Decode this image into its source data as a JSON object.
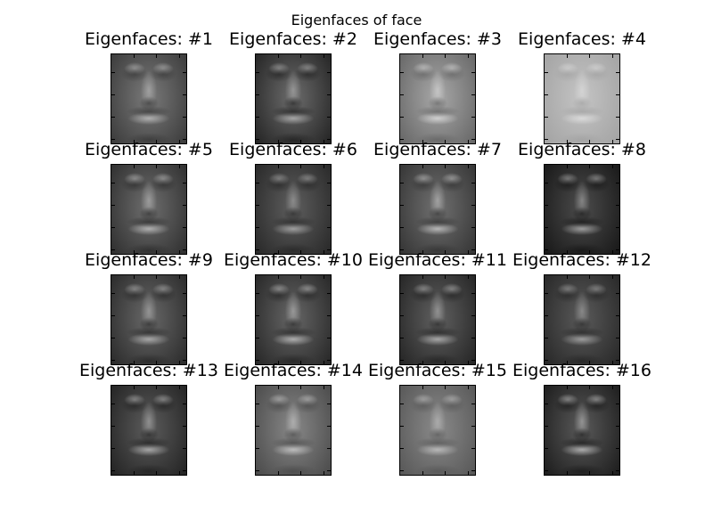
{
  "figure": {
    "suptitle": "Eigenfaces of face",
    "panels": [
      {
        "title": "Eigenfaces: #1",
        "base": "#7a7a7a",
        "highlight": "#d6d6d6",
        "shadow": "#2a2a2a"
      },
      {
        "title": "Eigenfaces: #2",
        "base": "#6c6c6c",
        "highlight": "#cfcfcf",
        "shadow": "#111111"
      },
      {
        "title": "Eigenfaces: #3",
        "base": "#a8a8a8",
        "highlight": "#eeeeee",
        "shadow": "#555555"
      },
      {
        "title": "Eigenfaces: #4",
        "base": "#c4c4c4",
        "highlight": "#eaeaea",
        "shadow": "#9a9a9a"
      },
      {
        "title": "Eigenfaces: #5",
        "base": "#6e6e6e",
        "highlight": "#dcdcdc",
        "shadow": "#1e1e1e"
      },
      {
        "title": "Eigenfaces: #6",
        "base": "#5e5e5e",
        "highlight": "#c8c8c8",
        "shadow": "#1a1a1a"
      },
      {
        "title": "Eigenfaces: #7",
        "base": "#707070",
        "highlight": "#e4e4e4",
        "shadow": "#252525"
      },
      {
        "title": "Eigenfaces: #8",
        "base": "#4c4c4c",
        "highlight": "#cfcfcf",
        "shadow": "#0a0a0a"
      },
      {
        "title": "Eigenfaces: #9",
        "base": "#686868",
        "highlight": "#d2d2d2",
        "shadow": "#1a1a1a"
      },
      {
        "title": "Eigenfaces: #10",
        "base": "#666666",
        "highlight": "#dddddd",
        "shadow": "#161616"
      },
      {
        "title": "Eigenfaces: #11",
        "base": "#606060",
        "highlight": "#d4d4d4",
        "shadow": "#151515"
      },
      {
        "title": "Eigenfaces: #12",
        "base": "#5a5a5a",
        "highlight": "#c6c6c6",
        "shadow": "#1a1a1a"
      },
      {
        "title": "Eigenfaces: #13",
        "base": "#5c5c5c",
        "highlight": "#d6d6d6",
        "shadow": "#141414"
      },
      {
        "title": "Eigenfaces: #14",
        "base": "#888888",
        "highlight": "#e2e2e2",
        "shadow": "#3a3a3a"
      },
      {
        "title": "Eigenfaces: #15",
        "base": "#8a8a8a",
        "highlight": "#d8d8d8",
        "shadow": "#4a4a4a"
      },
      {
        "title": "Eigenfaces: #16",
        "base": "#5a5a5a",
        "highlight": "#e0e0e0",
        "shadow": "#0c0c0c"
      }
    ]
  }
}
